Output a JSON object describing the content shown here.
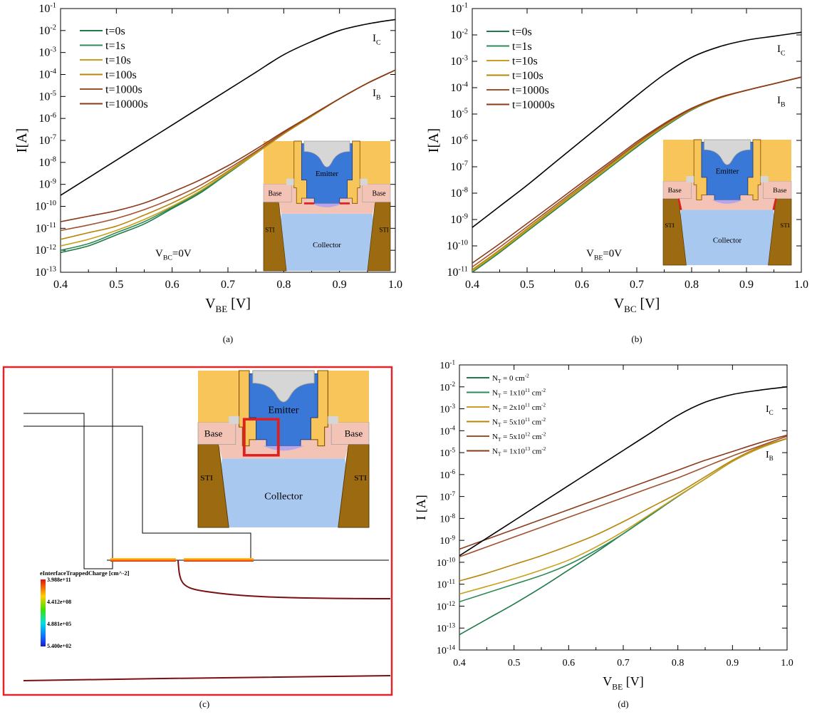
{
  "colors": {
    "ic": "#000000",
    "series": [
      "#1f7a4a",
      "#2e8b57",
      "#c8a01e",
      "#b8860b",
      "#a0522d",
      "#8b3a1a"
    ],
    "frame_c": "#e0262a",
    "metal": "#f7c55a",
    "metal_edge": "#8a5a00",
    "emitter": "#3a78d8",
    "base": "#f3c3b6",
    "collector": "#a8c8f0",
    "sti": "#9c6a10",
    "oxide": "#d6d6d6"
  },
  "inset": {
    "emitter": "Emitter",
    "base": "Base",
    "collector": "Collector",
    "sti": "STI"
  },
  "panel_c": {
    "caption": "(c)",
    "legend_title": "eInterfaceTrappedCharge [cm^-2]",
    "legend_values": [
      "3.988e+11",
      "4.412e+08",
      "4.881e+05",
      "5.400e+02"
    ]
  },
  "chart_data": [
    {
      "type": "line",
      "caption": "(a)",
      "xlabel": "V_BE [V]",
      "ylabel": "I[A]",
      "xlim": [
        0.4,
        1.0
      ],
      "ylim_exp": [
        -13,
        -1
      ],
      "log_y": true,
      "grid": false,
      "legend_position": "top-left",
      "annotation": "V_BC=0V",
      "curve_labels": [
        "I_C",
        "I_B"
      ],
      "x": [
        0.4,
        0.45,
        0.5,
        0.55,
        0.6,
        0.65,
        0.7,
        0.75,
        0.8,
        0.85,
        0.9,
        0.95,
        1.0
      ],
      "ic_log10": [
        -9.5,
        -8.7,
        -7.9,
        -7.1,
        -6.3,
        -5.5,
        -4.7,
        -3.9,
        -3.1,
        -2.5,
        -2.0,
        -1.7,
        -1.5
      ],
      "series": [
        {
          "name": "t=0s",
          "log10": [
            -12.1,
            -11.8,
            -11.3,
            -10.8,
            -10.1,
            -9.4,
            -8.5,
            -7.6,
            -6.7,
            -5.9,
            -5.1,
            -4.4,
            -3.8
          ]
        },
        {
          "name": "t=1s",
          "log10": [
            -12.0,
            -11.7,
            -11.2,
            -10.7,
            -10.05,
            -9.35,
            -8.5,
            -7.6,
            -6.7,
            -5.9,
            -5.1,
            -4.4,
            -3.8
          ]
        },
        {
          "name": "t=10s",
          "log10": [
            -11.8,
            -11.5,
            -11.1,
            -10.6,
            -10.0,
            -9.3,
            -8.45,
            -7.6,
            -6.7,
            -5.9,
            -5.1,
            -4.4,
            -3.8
          ]
        },
        {
          "name": "t=100s",
          "log10": [
            -11.5,
            -11.2,
            -10.9,
            -10.4,
            -9.85,
            -9.2,
            -8.4,
            -7.55,
            -6.7,
            -5.9,
            -5.1,
            -4.4,
            -3.8
          ]
        },
        {
          "name": "t=1000s",
          "log10": [
            -11.1,
            -10.85,
            -10.55,
            -10.15,
            -9.65,
            -9.05,
            -8.3,
            -7.5,
            -6.65,
            -5.85,
            -5.1,
            -4.4,
            -3.8
          ]
        },
        {
          "name": "t=10000s",
          "log10": [
            -10.7,
            -10.45,
            -10.2,
            -9.85,
            -9.35,
            -8.8,
            -8.15,
            -7.4,
            -6.6,
            -5.85,
            -5.1,
            -4.4,
            -3.8
          ]
        }
      ]
    },
    {
      "type": "line",
      "caption": "(b)",
      "xlabel": "V_BC [V]",
      "ylabel": "I[A]",
      "xlim": [
        0.4,
        1.0
      ],
      "ylim_exp": [
        -11,
        -1
      ],
      "log_y": true,
      "grid": false,
      "legend_position": "top-left",
      "annotation": "V_BE=0V",
      "curve_labels": [
        "I_C",
        "I_B"
      ],
      "x": [
        0.4,
        0.45,
        0.5,
        0.55,
        0.6,
        0.65,
        0.7,
        0.75,
        0.8,
        0.85,
        0.9,
        0.95,
        1.0
      ],
      "ic_log10": [
        -9.3,
        -8.5,
        -7.7,
        -6.85,
        -6.0,
        -5.15,
        -4.3,
        -3.5,
        -2.85,
        -2.45,
        -2.2,
        -2.05,
        -1.9
      ],
      "series": [
        {
          "name": "t=0s",
          "log10": [
            -11.0,
            -10.25,
            -9.45,
            -8.65,
            -7.85,
            -7.05,
            -6.25,
            -5.5,
            -4.85,
            -4.4,
            -4.1,
            -3.85,
            -3.6
          ]
        },
        {
          "name": "t=1s",
          "log10": [
            -10.98,
            -10.23,
            -9.43,
            -8.63,
            -7.83,
            -7.03,
            -6.23,
            -5.48,
            -4.84,
            -4.4,
            -4.1,
            -3.85,
            -3.6
          ]
        },
        {
          "name": "t=10s",
          "log10": [
            -10.95,
            -10.2,
            -9.4,
            -8.6,
            -7.8,
            -7.0,
            -6.2,
            -5.46,
            -4.83,
            -4.4,
            -4.1,
            -3.85,
            -3.6
          ]
        },
        {
          "name": "t=100s",
          "log10": [
            -10.9,
            -10.15,
            -9.35,
            -8.55,
            -7.75,
            -6.95,
            -6.15,
            -5.43,
            -4.82,
            -4.4,
            -4.1,
            -3.85,
            -3.6
          ]
        },
        {
          "name": "t=1000s",
          "log10": [
            -10.8,
            -10.05,
            -9.27,
            -8.48,
            -7.69,
            -6.9,
            -6.11,
            -5.4,
            -4.8,
            -4.38,
            -4.1,
            -3.85,
            -3.6
          ]
        },
        {
          "name": "t=10000s",
          "log10": [
            -10.65,
            -9.92,
            -9.15,
            -8.38,
            -7.6,
            -6.83,
            -6.05,
            -5.36,
            -4.78,
            -4.37,
            -4.1,
            -3.85,
            -3.6
          ]
        }
      ]
    },
    {
      "type": "line",
      "caption": "(d)",
      "xlabel": "V_BE [V]",
      "ylabel": "I [A]",
      "xlim": [
        0.4,
        1.0
      ],
      "ylim_exp": [
        -14,
        -1
      ],
      "log_y": true,
      "grid": false,
      "legend_position": "top-left",
      "curve_labels": [
        "I_C",
        "I_B"
      ],
      "x": [
        0.4,
        0.45,
        0.5,
        0.55,
        0.6,
        0.65,
        0.7,
        0.75,
        0.8,
        0.85,
        0.9,
        0.95,
        1.0
      ],
      "ic_log10": [
        -9.7,
        -8.9,
        -8.1,
        -7.3,
        -6.5,
        -5.7,
        -4.9,
        -4.1,
        -3.3,
        -2.7,
        -2.35,
        -2.15,
        -2.0
      ],
      "series": [
        {
          "name": "N_T = 0 cm^-2",
          "log10": [
            -13.3,
            -12.6,
            -11.9,
            -11.15,
            -10.35,
            -9.55,
            -8.7,
            -7.85,
            -7.0,
            -6.2,
            -5.4,
            -4.8,
            -4.35
          ]
        },
        {
          "name": "N_T = 1x10^11 cm^-2",
          "log10": [
            -11.8,
            -11.4,
            -11.0,
            -10.6,
            -10.1,
            -9.45,
            -8.7,
            -7.85,
            -7.0,
            -6.2,
            -5.4,
            -4.8,
            -4.35
          ]
        },
        {
          "name": "N_T = 2x10^11 cm^-2",
          "log10": [
            -11.45,
            -11.1,
            -10.75,
            -10.35,
            -9.9,
            -9.3,
            -8.6,
            -7.8,
            -6.98,
            -6.2,
            -5.4,
            -4.8,
            -4.35
          ]
        },
        {
          "name": "N_T = 5x10^11 cm^-2",
          "log10": [
            -10.85,
            -10.5,
            -10.1,
            -9.7,
            -9.25,
            -8.75,
            -8.15,
            -7.5,
            -6.85,
            -6.1,
            -5.35,
            -4.75,
            -4.35
          ]
        },
        {
          "name": "N_T = 5x10^12 cm^-2",
          "log10": [
            -9.75,
            -9.3,
            -8.85,
            -8.4,
            -7.95,
            -7.5,
            -7.05,
            -6.6,
            -6.15,
            -5.65,
            -5.15,
            -4.7,
            -4.25
          ]
        },
        {
          "name": "N_T = 1x10^13 cm^-2",
          "log10": [
            -9.4,
            -8.95,
            -8.5,
            -8.05,
            -7.6,
            -7.15,
            -6.7,
            -6.25,
            -5.8,
            -5.35,
            -4.95,
            -4.55,
            -4.2
          ]
        }
      ]
    }
  ]
}
